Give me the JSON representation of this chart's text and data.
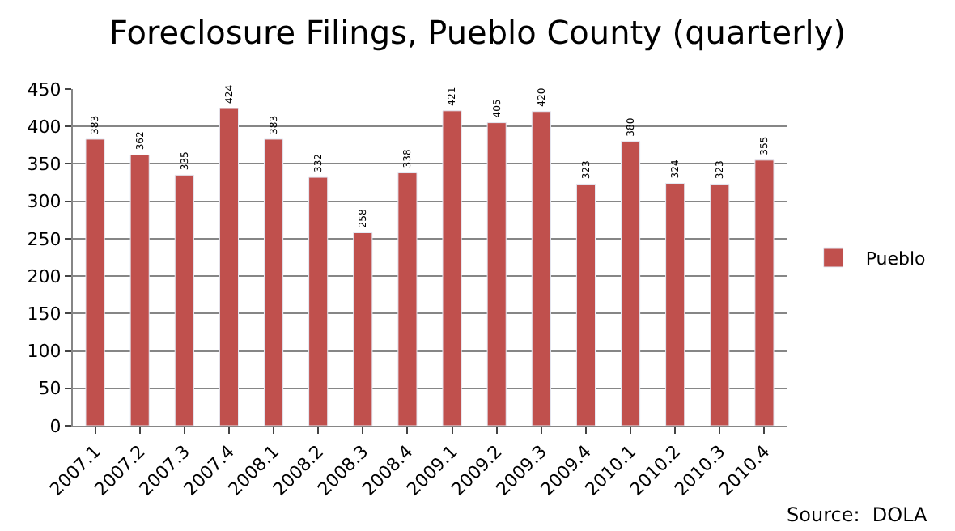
{
  "chart_data": {
    "type": "bar",
    "title": "Foreclosure Filings, Pueblo County (quarterly)",
    "categories": [
      "2007.1",
      "2007.2",
      "2007.3",
      "2007.4",
      "2008.1",
      "2008.2",
      "2008.3",
      "2008.4",
      "2009.1",
      "2009.2",
      "2009.3",
      "2009.4",
      "2010.1",
      "2010.2",
      "2010.3",
      "2010.4"
    ],
    "series": [
      {
        "name": "Pueblo",
        "color": "#c0504d",
        "values": [
          383,
          362,
          335,
          424,
          383,
          332,
          258,
          338,
          421,
          405,
          420,
          323,
          380,
          324,
          323,
          355
        ]
      }
    ],
    "ylim": [
      0,
      450
    ],
    "yticks": [
      0,
      50,
      100,
      150,
      200,
      250,
      300,
      350,
      400,
      450
    ],
    "grid": "y",
    "legend": "right",
    "data_labels": true,
    "annotations": [
      "Source:  DOLA"
    ]
  }
}
